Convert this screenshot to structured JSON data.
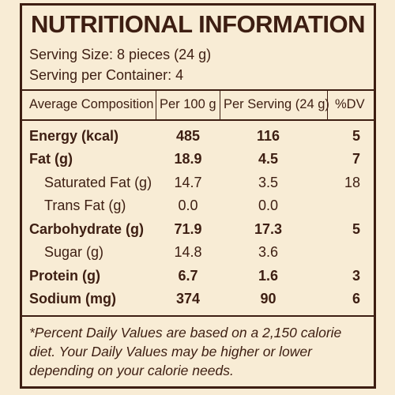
{
  "label": {
    "title": "NUTRITIONAL INFORMATION",
    "serving_size": "Serving Size: 8 pieces (24 g)",
    "servings_per_container": "Serving per Container:  4",
    "headers": {
      "composition": "Average Composition",
      "per_100g": "Per 100 g",
      "per_serving": "Per Serving (24 g)",
      "dv": "%DV"
    },
    "rows": [
      {
        "name": "Energy (kcal)",
        "per_100g": "485",
        "per_serving": "116",
        "dv": "5"
      },
      {
        "name": "Fat (g)",
        "per_100g": "18.9",
        "per_serving": "4.5",
        "dv": "7"
      },
      {
        "name": "Saturated Fat (g)",
        "per_100g": "14.7",
        "per_serving": "3.5",
        "dv": "18"
      },
      {
        "name": "Trans Fat (g)",
        "per_100g": "0.0",
        "per_serving": "0.0",
        "dv": ""
      },
      {
        "name": "Carbohydrate (g)",
        "per_100g": "71.9",
        "per_serving": "17.3",
        "dv": "5"
      },
      {
        "name": "Sugar (g)",
        "per_100g": "14.8",
        "per_serving": "3.6",
        "dv": ""
      },
      {
        "name": "Protein (g)",
        "per_100g": "6.7",
        "per_serving": "1.6",
        "dv": "3"
      },
      {
        "name": "Sodium (mg)",
        "per_100g": "374",
        "per_serving": "90",
        "dv": "6"
      }
    ],
    "footnote": "*Percent Daily Values are based on a 2,150 calorie diet. Your Daily Values may be higher or lower depending on your calorie needs."
  },
  "colors": {
    "background": "#f8ecd5",
    "text": "#3d1e12"
  }
}
